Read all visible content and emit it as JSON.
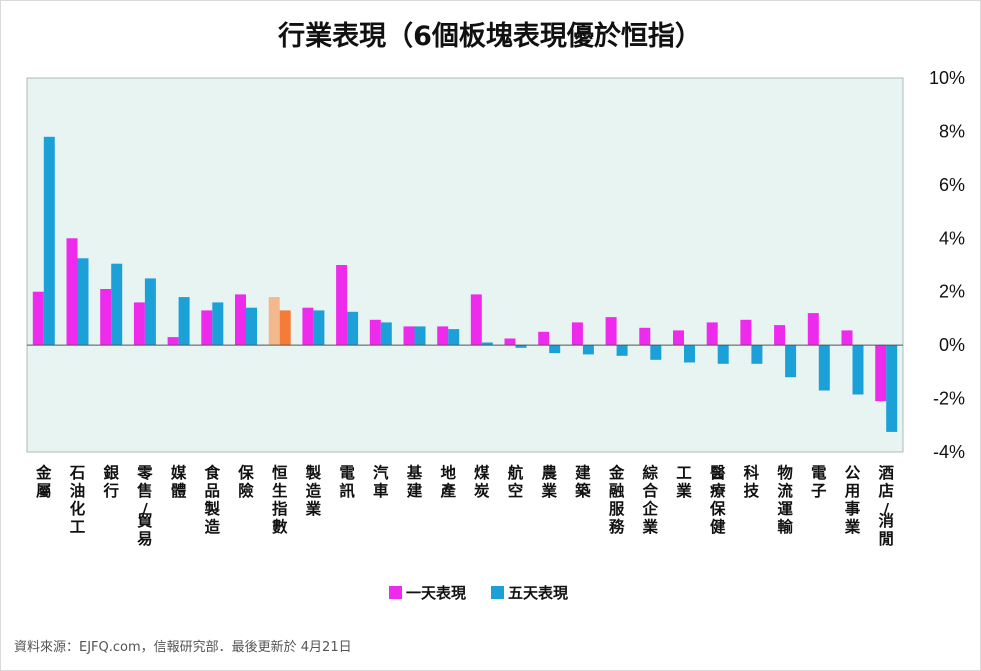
{
  "chart_data": {
    "type": "bar",
    "title": "行業表現（6個板塊表現優於恒指）",
    "categories": [
      "金屬",
      "石油化工",
      "銀行",
      "零售/貿易",
      "媒體",
      "食品製造",
      "保險",
      "恒生指數",
      "製造業",
      "電訊",
      "汽車",
      "基建",
      "地產",
      "煤炭",
      "航空",
      "農業",
      "建築",
      "金融服務",
      "綜合企業",
      "工業",
      "醫療保健",
      "科技",
      "物流運輸",
      "電子",
      "公用事業",
      "酒店/消閒"
    ],
    "highlight_category": "恒生指數",
    "series": [
      {
        "name": "一天表現",
        "color": "#ee2bed",
        "highlight_color": "#f4b88f",
        "values": [
          2.0,
          4.0,
          2.1,
          1.6,
          0.3,
          1.3,
          1.9,
          1.8,
          1.4,
          3.0,
          0.95,
          0.7,
          0.7,
          1.9,
          0.25,
          0.5,
          0.85,
          1.05,
          0.65,
          0.55,
          0.85,
          0.95,
          0.75,
          1.2,
          0.55,
          -2.1
        ]
      },
      {
        "name": "五天表現",
        "color": "#1ba0d8",
        "highlight_color": "#f47c38",
        "values": [
          7.8,
          3.25,
          3.05,
          2.5,
          1.8,
          1.6,
          1.4,
          1.3,
          1.3,
          1.25,
          0.85,
          0.7,
          0.6,
          0.1,
          -0.1,
          -0.3,
          -0.35,
          -0.4,
          -0.55,
          -0.65,
          -0.7,
          -0.7,
          -1.2,
          -1.7,
          -1.85,
          -3.25
        ]
      }
    ],
    "ylim": [
      -4,
      10
    ],
    "yticks": [
      -4,
      -2,
      0,
      2,
      4,
      6,
      8,
      10
    ],
    "ytick_labels": [
      "-4%",
      "-2%",
      "0%",
      "2%",
      "4%",
      "6%",
      "8%",
      "10%"
    ],
    "xlabel": "",
    "ylabel": "",
    "legend_position": "bottom-center",
    "grid": false,
    "plot_background": "#e8f4f2"
  },
  "footer": {
    "source": "資料來源：EJFQ.com，信報研究部．最後更新於 4月21日"
  }
}
